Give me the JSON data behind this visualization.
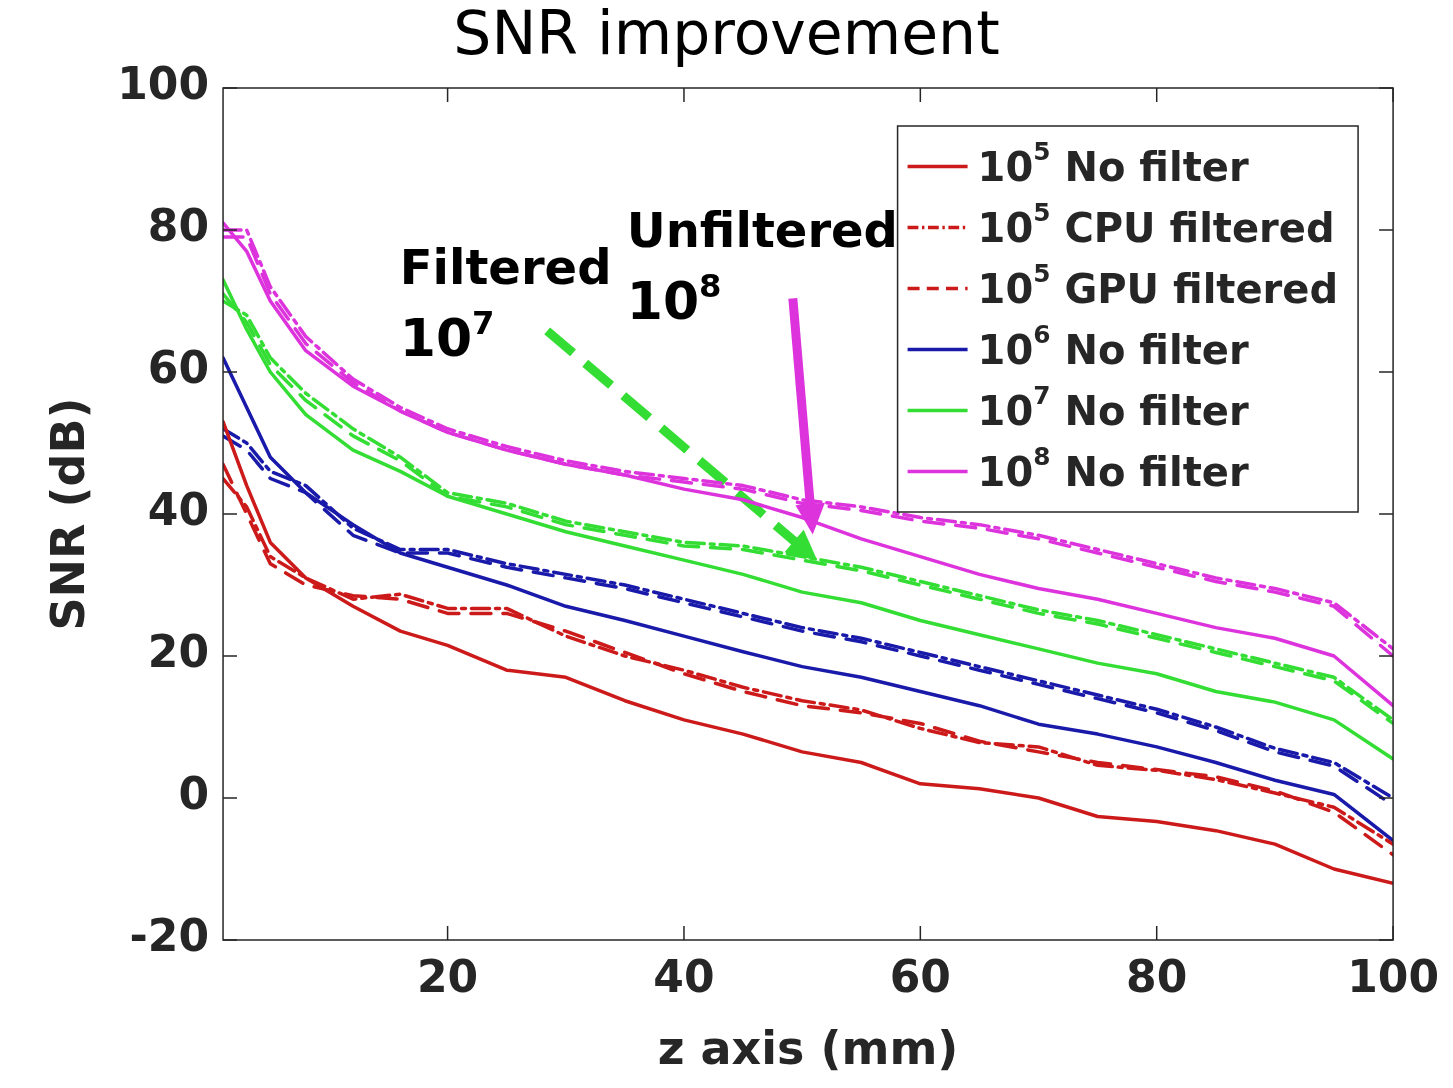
{
  "chart_data": {
    "type": "line",
    "title": "SNR improvement",
    "xlabel": "z axis (mm)",
    "ylabel": "SNR (dB)",
    "x": [
      1,
      3,
      5,
      8,
      12,
      16,
      20,
      25,
      30,
      35,
      40,
      45,
      50,
      55,
      60,
      65,
      70,
      75,
      80,
      85,
      90,
      95,
      100
    ],
    "xlim": [
      1,
      100
    ],
    "xticks": [
      20,
      40,
      60,
      80,
      100
    ],
    "ylim": [
      -20,
      100
    ],
    "yticks": [
      -20,
      0,
      20,
      40,
      60,
      80,
      100
    ],
    "grid": false,
    "legend": "top right",
    "series": [
      {
        "name": "10$^{5}$ No filter",
        "color": "#cc1a1a",
        "line_style": "solid",
        "values": [
          53,
          44,
          36,
          31,
          27,
          23.5,
          21.5,
          18,
          17,
          13.7,
          11,
          9,
          6.5,
          5,
          2,
          1.3,
          0,
          -2.6,
          -3.3,
          -4.6,
          -6.5,
          -10,
          -12
        ]
      },
      {
        "name": "10$^{5}$ CPU filtered",
        "color": "#cc1a1a",
        "line_style": "dashdot",
        "values": [
          45,
          41,
          34,
          31,
          28,
          28.7,
          26.7,
          26.7,
          22.8,
          20,
          18,
          15.6,
          13.7,
          12.4,
          9.8,
          7.8,
          7.2,
          4.6,
          3.9,
          2.6,
          0.7,
          -1.3,
          -6.5
        ]
      },
      {
        "name": "10$^{5}$ GPU filtered",
        "color": "#cc1a1a",
        "line_style": "dashed",
        "values": [
          47,
          40,
          33,
          30,
          28.5,
          28,
          26,
          26,
          23.5,
          20.5,
          17.5,
          15,
          13,
          12,
          10.5,
          8,
          6.5,
          5,
          4,
          3,
          1,
          -2,
          -8
        ]
      },
      {
        "name": "10$^{6}$ No filter",
        "color": "#1a1aaa",
        "line_style": "solid",
        "values": [
          62,
          55,
          48,
          43,
          38.5,
          34.5,
          32.5,
          30,
          27,
          25,
          22.8,
          20.6,
          18.5,
          17,
          15,
          13,
          10.4,
          9,
          7.2,
          5,
          2.5,
          0.5,
          -6
        ]
      },
      {
        "color": "#1a1aaa",
        "line_style": "dashdot",
        "values": [
          52,
          50,
          46,
          44,
          38,
          35,
          35,
          33,
          31.5,
          30,
          28,
          26,
          24,
          22.5,
          20.5,
          18.5,
          16.5,
          14.5,
          12.5,
          10,
          7,
          5,
          0
        ]
      },
      {
        "color": "#1a1aaa",
        "line_style": "dashed",
        "values": [
          51,
          49,
          45,
          43,
          37,
          34.5,
          34.5,
          32.5,
          31,
          29.5,
          27.5,
          25.5,
          23.5,
          22,
          20,
          18,
          16,
          14,
          12,
          9.5,
          6.5,
          4.5,
          -1
        ]
      },
      {
        "name": "10$^{7}$ No filter",
        "color": "#33dd33",
        "line_style": "solid",
        "values": [
          73,
          66,
          60,
          54,
          49,
          46,
          42.5,
          40,
          37.5,
          35.5,
          33.5,
          31.5,
          29,
          27.5,
          25,
          23,
          21,
          19,
          17.5,
          15,
          13.5,
          11,
          5.5
        ]
      },
      {
        "color": "#33dd33",
        "line_style": "dashdot",
        "values": [
          70,
          68,
          62,
          57,
          52,
          48,
          43,
          41.5,
          39,
          37.5,
          36,
          35.5,
          34,
          32.5,
          30.5,
          28.5,
          26.5,
          25,
          23,
          21,
          19,
          17,
          11
        ]
      },
      {
        "color": "#33dd33",
        "line_style": "dashed",
        "values": [
          71,
          67,
          61,
          56,
          51,
          47.5,
          42.5,
          41,
          38.5,
          37,
          35.5,
          35,
          33.5,
          32,
          30,
          28,
          26,
          24.5,
          22.5,
          20.5,
          18.5,
          16.5,
          10.5
        ]
      },
      {
        "name": "10$^{8}$ No filter",
        "color": "#dd33dd",
        "line_style": "solid",
        "values": [
          81,
          77,
          70,
          63,
          58,
          54.5,
          51.5,
          49,
          47,
          45.5,
          43.5,
          42,
          39.5,
          36.5,
          34,
          31.5,
          29.5,
          28,
          26,
          24,
          22.5,
          20,
          13
        ]
      },
      {
        "color": "#dd33dd",
        "line_style": "dashdot",
        "values": [
          80,
          80,
          72,
          65,
          59,
          55,
          52,
          49.5,
          47.5,
          46,
          45,
          44,
          42,
          41,
          39.5,
          38.5,
          37,
          35,
          33,
          31,
          29.5,
          27.5,
          21
        ]
      },
      {
        "color": "#dd33dd",
        "line_style": "dashed",
        "values": [
          79,
          79,
          71,
          64,
          58.5,
          54.5,
          51.5,
          49,
          47,
          45.5,
          44.5,
          43.5,
          41.5,
          40.5,
          39,
          38,
          36.5,
          34.5,
          32.5,
          30.5,
          29,
          27,
          20
        ]
      }
    ],
    "annotations": [
      "Filtered\n10$^{7}$",
      "Unfiltered\n10$^{8}$"
    ]
  }
}
